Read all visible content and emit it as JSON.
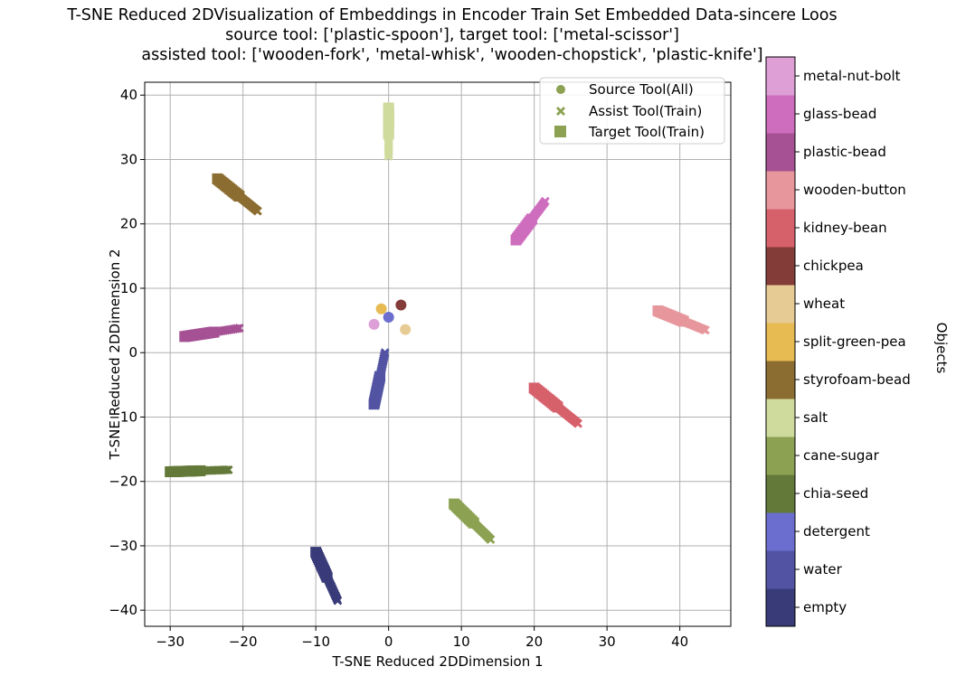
{
  "chart_data": {
    "type": "scatter",
    "title": [
      "T-SNE Reduced 2DVisualization of Embeddings in Encoder Train Set Embedded Data-sincere Loos",
      "source tool: ['plastic-spoon'], target tool: ['metal-scissor']",
      "assisted tool: ['wooden-fork', 'metal-whisk', 'wooden-chopstick', 'plastic-knife']"
    ],
    "xlabel": "T-SNE Reduced 2DDimension 1",
    "ylabel": "T-SNE Reduced 2DDimension 2",
    "xlim": [
      -33.5,
      47
    ],
    "ylim": [
      -42.5,
      42
    ],
    "xticks": [
      -30,
      -20,
      -10,
      0,
      10,
      20,
      30,
      40
    ],
    "yticks": [
      -40,
      -30,
      -20,
      -10,
      0,
      10,
      20,
      30,
      40
    ],
    "grid": true,
    "legend": {
      "placement": "top-right",
      "entries": [
        {
          "label": "Source Tool(All)",
          "marker": "circle"
        },
        {
          "label": "Assist Tool(Train)",
          "marker": "x"
        },
        {
          "label": "Target Tool(Train)",
          "marker": "square"
        }
      ]
    },
    "colorbar": {
      "label": "Objects",
      "categories": [
        {
          "name": "empty",
          "color": "#393b79"
        },
        {
          "name": "water",
          "color": "#5254a3"
        },
        {
          "name": "detergent",
          "color": "#6b6ecf"
        },
        {
          "name": "chia-seed",
          "color": "#637939"
        },
        {
          "name": "cane-sugar",
          "color": "#8ca252"
        },
        {
          "name": "salt",
          "color": "#cedb9c"
        },
        {
          "name": "styrofoam-bead",
          "color": "#8c6d31"
        },
        {
          "name": "split-green-pea",
          "color": "#e7ba52"
        },
        {
          "name": "wheat",
          "color": "#e7cb94"
        },
        {
          "name": "chickpea",
          "color": "#843c39"
        },
        {
          "name": "kidney-bean",
          "color": "#d6616b"
        },
        {
          "name": "wooden-button",
          "color": "#e7969c"
        },
        {
          "name": "plastic-bead",
          "color": "#a55194"
        },
        {
          "name": "glass-bead",
          "color": "#ce6dbd"
        },
        {
          "name": "metal-nut-bolt",
          "color": "#de9ed6"
        }
      ]
    },
    "clusters": [
      {
        "object": "empty",
        "start": [
          -10,
          -31
        ],
        "end": [
          -7,
          -38.5
        ]
      },
      {
        "object": "water",
        "start": [
          -2,
          -8
        ],
        "end": [
          -0.5,
          0
        ]
      },
      {
        "object": "chia-seed",
        "start": [
          -30,
          -18.5
        ],
        "end": [
          -22,
          -18.2
        ]
      },
      {
        "object": "cane-sugar",
        "start": [
          9,
          -23.5
        ],
        "end": [
          14,
          -29
        ]
      },
      {
        "object": "salt",
        "start": [
          0,
          38
        ],
        "end": [
          0,
          30.5
        ]
      },
      {
        "object": "styrofoam-bead",
        "start": [
          -23.5,
          27
        ],
        "end": [
          -18,
          22
        ]
      },
      {
        "object": "kidney-bean",
        "start": [
          20,
          -5.5
        ],
        "end": [
          26,
          -11
        ]
      },
      {
        "object": "wooden-button",
        "start": [
          37,
          6.5
        ],
        "end": [
          43.5,
          3.5
        ]
      },
      {
        "object": "plastic-bead",
        "start": [
          -28,
          2.5
        ],
        "end": [
          -20.5,
          3.8
        ]
      },
      {
        "object": "glass-bead",
        "start": [
          17.5,
          17.5
        ],
        "end": [
          21.5,
          23.5
        ]
      }
    ],
    "source_points": [
      {
        "object": "split-green-pea",
        "x": -1,
        "y": 6.8
      },
      {
        "object": "chickpea",
        "x": 1.7,
        "y": 7.4
      },
      {
        "object": "detergent",
        "x": 0,
        "y": 5.5
      },
      {
        "object": "metal-nut-bolt",
        "x": -2,
        "y": 4.4
      },
      {
        "object": "wheat",
        "x": 2.3,
        "y": 3.6
      }
    ]
  }
}
